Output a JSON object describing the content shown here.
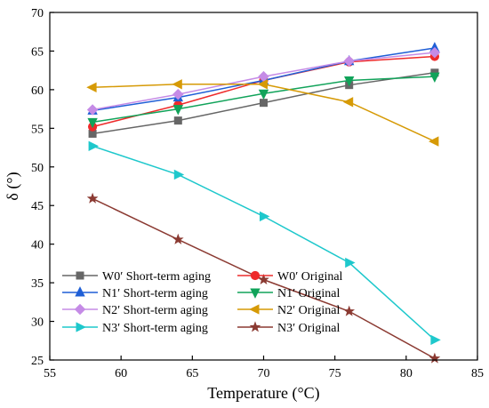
{
  "chart_data": {
    "type": "line",
    "xlabel": "Temperature (°C)",
    "ylabel": "δ (°)",
    "xlim": [
      55,
      85
    ],
    "ylim": [
      25,
      70
    ],
    "xticks": [
      55,
      60,
      65,
      70,
      75,
      80,
      85
    ],
    "yticks": [
      25,
      30,
      35,
      40,
      45,
      50,
      55,
      60,
      65,
      70
    ],
    "grid": false,
    "legend_position": "bottom-left",
    "series": [
      {
        "name": "W0′ Short-term aging",
        "marker": "square",
        "color": "#666666",
        "x": [
          58,
          64,
          70,
          76,
          82
        ],
        "y": [
          54.3,
          56.0,
          58.3,
          60.6,
          62.2
        ]
      },
      {
        "name": "W0′ Original",
        "marker": "circle",
        "color": "#ee2b2b",
        "x": [
          58,
          64,
          70,
          76,
          82
        ],
        "y": [
          55.2,
          58.0,
          61.2,
          63.6,
          64.3
        ]
      },
      {
        "name": "N1′ Short-term aging",
        "marker": "triangle-up",
        "color": "#1f5fd6",
        "x": [
          58,
          64,
          70,
          76,
          82
        ],
        "y": [
          57.3,
          59.0,
          61.2,
          63.7,
          65.4
        ]
      },
      {
        "name": "N1′ Original",
        "marker": "triangle-down",
        "color": "#11a35a",
        "x": [
          58,
          64,
          70,
          76,
          82
        ],
        "y": [
          55.8,
          57.5,
          59.5,
          61.2,
          61.7
        ]
      },
      {
        "name": "N2′ Short-term aging",
        "marker": "diamond",
        "color": "#c58be6",
        "x": [
          58,
          64,
          70,
          76,
          82
        ],
        "y": [
          57.4,
          59.4,
          61.7,
          63.7,
          64.8
        ]
      },
      {
        "name": "N2′ Original",
        "marker": "triangle-left",
        "color": "#d69a06",
        "x": [
          58,
          64,
          70,
          76,
          82
        ],
        "y": [
          60.3,
          60.7,
          60.7,
          58.4,
          53.3
        ]
      },
      {
        "name": "N3′ Short-term aging",
        "marker": "triangle-right",
        "color": "#1ec8cc",
        "x": [
          58,
          64,
          70,
          76,
          82
        ],
        "y": [
          52.7,
          49.0,
          43.6,
          37.6,
          27.6
        ]
      },
      {
        "name": "N3′ Original",
        "marker": "star",
        "color": "#8b3a32",
        "x": [
          58,
          64,
          70,
          76,
          82
        ],
        "y": [
          45.9,
          40.6,
          35.4,
          31.3,
          25.2
        ]
      }
    ]
  }
}
